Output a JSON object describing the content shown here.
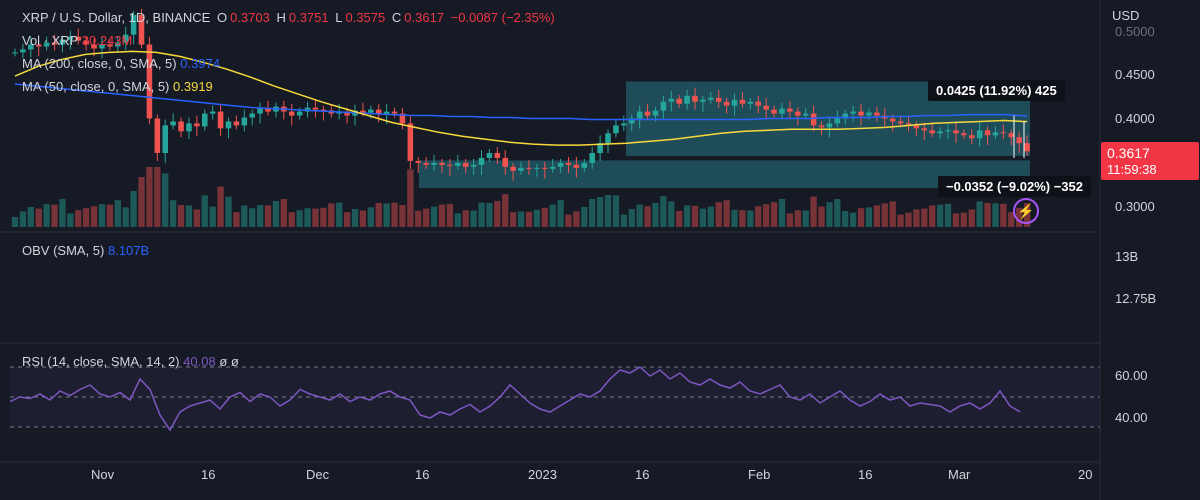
{
  "header": {
    "symbol": "XRP / U.S. Dollar, 1D, BINANCE",
    "open_label": "O",
    "open": "0.3703",
    "high_label": "H",
    "high": "0.3751",
    "low_label": "L",
    "low": "0.3575",
    "close_label": "C",
    "close": "0.3617",
    "change": "−0.0087 (−2.35%)"
  },
  "indicators": {
    "vol_label": "Vol · XRP",
    "vol_value": "30.243M",
    "ma200_label": "MA (200, close, 0, SMA, 5)",
    "ma200_value": "0.3974",
    "ma50_label": "MA (50, close, 0, SMA, 5)",
    "ma50_value": "0.3919",
    "obv_label": "OBV (SMA, 5)",
    "obv_value": "8.107B",
    "rsi_label": "RSI (14, close, SMA, 14, 2)",
    "rsi_value": "40.08",
    "rsi_extra": "ø ø"
  },
  "measure": {
    "up_text": "0.0425 (11.92%) 425",
    "down_text": "−0.0352 (−9.02%) −352"
  },
  "price_axis": {
    "currency": "USD",
    "ticks": [
      "0.5000",
      "0.4500",
      "0.4000",
      "0.3000"
    ],
    "current_price": "0.3617",
    "countdown": "11:59:38",
    "obv_ticks": [
      "13B",
      "12.75B"
    ],
    "rsi_ticks": [
      "60.00",
      "40.00"
    ]
  },
  "time_axis": {
    "labels": [
      "Nov",
      "16",
      "Dec",
      "16",
      "2023",
      "16",
      "Feb",
      "16",
      "Mar",
      "20"
    ]
  },
  "colors": {
    "up": "#26a69a",
    "down": "#ef5350",
    "ma200": "#2962ff",
    "ma50": "#f7d93b",
    "rsi": "#7e57c2",
    "background": "#161a25"
  },
  "chart_data": {
    "type": "candlestick",
    "series": [
      {
        "name": "MA (200, close, 0, SMA, 5)",
        "last": 0.3974
      },
      {
        "name": "MA (50, close, 0, SMA, 5)",
        "last": 0.3919
      }
    ],
    "ohlc_last": {
      "open": 0.3703,
      "high": 0.3751,
      "low": 0.3575,
      "close": 0.3617
    },
    "closes": [
      0.462,
      0.465,
      0.47,
      0.468,
      0.472,
      0.47,
      0.475,
      0.478,
      0.474,
      0.47,
      0.466,
      0.47,
      0.468,
      0.472,
      0.48,
      0.5,
      0.47,
      0.395,
      0.36,
      0.388,
      0.392,
      0.382,
      0.39,
      0.387,
      0.4,
      0.402,
      0.385,
      0.392,
      0.388,
      0.396,
      0.4,
      0.405,
      0.402,
      0.407,
      0.402,
      0.398,
      0.402,
      0.406,
      0.404,
      0.403,
      0.4,
      0.402,
      0.398,
      0.403,
      0.401,
      0.404,
      0.399,
      0.402,
      0.4,
      0.39,
      0.352,
      0.35,
      0.348,
      0.35,
      0.348,
      0.347,
      0.35,
      0.346,
      0.348,
      0.355,
      0.36,
      0.355,
      0.346,
      0.342,
      0.345,
      0.344,
      0.345,
      0.344,
      0.346,
      0.35,
      0.348,
      0.345,
      0.35,
      0.36,
      0.37,
      0.38,
      0.388,
      0.39,
      0.395,
      0.402,
      0.398,
      0.403,
      0.412,
      0.415,
      0.41,
      0.418,
      0.412,
      0.414,
      0.416,
      0.412,
      0.408,
      0.414,
      0.41,
      0.412,
      0.408,
      0.404,
      0.4,
      0.405,
      0.402,
      0.398,
      0.4,
      0.388,
      0.386,
      0.39,
      0.395,
      0.4,
      0.402,
      0.398,
      0.401,
      0.398,
      0.395,
      0.392,
      0.39,
      0.388,
      0.385,
      0.383,
      0.38,
      0.382,
      0.383,
      0.38,
      0.378,
      0.375,
      0.383,
      0.378,
      0.381,
      0.38,
      0.376,
      0.37,
      0.3617
    ],
    "ma200": [
      0.43,
      0.428,
      0.426,
      0.424,
      0.422,
      0.42,
      0.418,
      0.416,
      0.414,
      0.412,
      0.41,
      0.408,
      0.406,
      0.405,
      0.404,
      0.403,
      0.402,
      0.401,
      0.4,
      0.399,
      0.398,
      0.398,
      0.397,
      0.397,
      0.396,
      0.396,
      0.395,
      0.395,
      0.395,
      0.394,
      0.394,
      0.394,
      0.394,
      0.394,
      0.394,
      0.394,
      0.394,
      0.394,
      0.395,
      0.395,
      0.395,
      0.396,
      0.396,
      0.396,
      0.397,
      0.397,
      0.398,
      0.398,
      0.399,
      0.399,
      0.399,
      0.3974
    ],
    "ma50": [
      0.438,
      0.448,
      0.455,
      0.46,
      0.462,
      0.463,
      0.462,
      0.458,
      0.452,
      0.445,
      0.437,
      0.428,
      0.42,
      0.412,
      0.405,
      0.398,
      0.391,
      0.386,
      0.381,
      0.377,
      0.374,
      0.371,
      0.369,
      0.368,
      0.368,
      0.369,
      0.37,
      0.372,
      0.374,
      0.377,
      0.38,
      0.382,
      0.383,
      0.384,
      0.384,
      0.384,
      0.385,
      0.386,
      0.388,
      0.39,
      0.391,
      0.392,
      0.393,
      0.3919
    ],
    "rsi": [
      47,
      50,
      49,
      52,
      48,
      54,
      51,
      55,
      58,
      52,
      50,
      53,
      48,
      62,
      55,
      38,
      28,
      40,
      44,
      46,
      48,
      42,
      50,
      53,
      47,
      52,
      50,
      44,
      48,
      55,
      52,
      50,
      48,
      52,
      47,
      50,
      48,
      52,
      54,
      50,
      48,
      38,
      36,
      40,
      38,
      42,
      45,
      40,
      44,
      50,
      58,
      52,
      46,
      42,
      40,
      44,
      48,
      52,
      50,
      54,
      62,
      68,
      66,
      70,
      64,
      68,
      62,
      66,
      60,
      58,
      62,
      58,
      56,
      60,
      54,
      52,
      55,
      58,
      50,
      48,
      52,
      46,
      50,
      54,
      48,
      44,
      47,
      52,
      48,
      50,
      44,
      46,
      45,
      44,
      40,
      44,
      46,
      42,
      46,
      54,
      44,
      40.08
    ],
    "obv_last": "8.107B",
    "price_range": [
      0.285,
      0.505
    ],
    "rsi_range": [
      20,
      80
    ],
    "rsi_levels": [
      70,
      50,
      30
    ],
    "measure_ranges": [
      {
        "from": 0.357,
        "to": 0.4325,
        "label": "0.0425 (11.92%) 425"
      },
      {
        "from": 0.3245,
        "to": 0.3525,
        "label": "−0.0352 (−9.02%) −352"
      }
    ],
    "x_labels": [
      "Nov",
      "16",
      "Dec",
      "16",
      "2023",
      "16",
      "Feb",
      "16",
      "Mar",
      "20"
    ]
  }
}
